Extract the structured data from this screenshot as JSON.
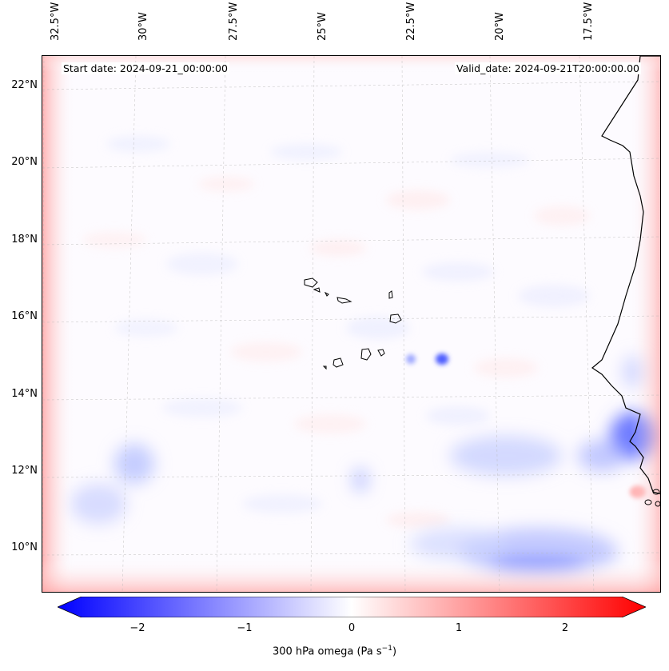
{
  "map": {
    "start_date_text": "Start date: 2024-09-21_00:00:00",
    "valid_date_text": "Valid_date: 2024-09-21T20:00:00.00",
    "lon_labels": [
      "32.5°W",
      "30°W",
      "27.5°W",
      "25°W",
      "22.5°W",
      "20°W",
      "17.5°W"
    ],
    "lat_labels": [
      "22°N",
      "20°N",
      "18°N",
      "16°N",
      "14°N",
      "12°N",
      "10°N"
    ],
    "field": "300 hPa omega"
  },
  "colorbar": {
    "label": "300 hPa omega (Pa s",
    "label_exp": "−1",
    "label_close": ")",
    "ticks": [
      "−2",
      "−1",
      "0",
      "1",
      "2"
    ],
    "range": [
      -2.75,
      2.75
    ],
    "colormap": "bwr",
    "colors": {
      "min": "#0000ff",
      "mid": "#ffffff",
      "max": "#ff0000"
    }
  }
}
